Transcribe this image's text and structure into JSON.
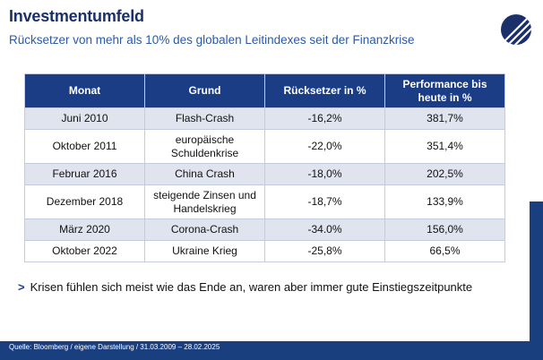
{
  "header": {
    "title": "Investmentumfeld",
    "subtitle": "Rücksetzer von mehr als 10% des globalen Leitindexes seit der Finanzkrise"
  },
  "logo": {
    "icon": "diagonal-stripes-logo-icon",
    "color": "#1b2f6b"
  },
  "table": {
    "columns": [
      "Monat",
      "Grund",
      "Rücksetzer in %",
      "Performance bis heute in %"
    ],
    "rows": [
      {
        "month": "Juni 2010",
        "reason": "Flash-Crash",
        "drawdown": "-16,2%",
        "performance": "381,7%"
      },
      {
        "month": "Oktober 2011",
        "reason": "europäische Schuldenkrise",
        "drawdown": "-22,0%",
        "performance": "351,4%"
      },
      {
        "month": "Februar 2016",
        "reason": "China Crash",
        "drawdown": "-18,0%",
        "performance": "202,5%"
      },
      {
        "month": "Dezember 2018",
        "reason": "steigende Zinsen und Handelskrieg",
        "drawdown": "-18,7%",
        "performance": "133,9%"
      },
      {
        "month": "März 2020",
        "reason": "Corona-Crash",
        "drawdown": "-34.0%",
        "performance": "156,0%"
      },
      {
        "month": "Oktober 2022",
        "reason": "Ukraine Krieg",
        "drawdown": "-25,8%",
        "performance": "66,5%"
      }
    ]
  },
  "conclusion": {
    "icon": "chevron-right-icon",
    "text": "Krisen fühlen sich meist wie das Ende an, waren aber immer gute Einstiegszeitpunkte"
  },
  "footer": {
    "source": "Quelle: Bloomberg / eigene Darstellung / 31.03.2009 – 28.02.2025"
  },
  "colors": {
    "brand_navy": "#1b3d86",
    "band_blue": "#1a3f7f",
    "row_shade": "#dfe4ee",
    "subtitle_blue": "#2a5aa8"
  }
}
